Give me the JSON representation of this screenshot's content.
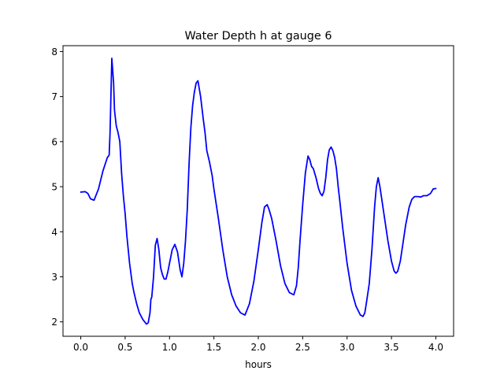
{
  "chart_data": {
    "type": "line",
    "title": "Water Depth h at gauge 6",
    "xlabel": "hours",
    "ylabel": "",
    "xlim": [
      -0.2,
      4.2
    ],
    "ylim": [
      1.68,
      8.13
    ],
    "xticks": [
      0.0,
      0.5,
      1.0,
      1.5,
      2.0,
      2.5,
      3.0,
      3.5,
      4.0
    ],
    "xtick_labels": [
      "0.0",
      "0.5",
      "1.0",
      "1.5",
      "2.0",
      "2.5",
      "3.0",
      "3.5",
      "4.0"
    ],
    "yticks": [
      2,
      3,
      4,
      5,
      6,
      7,
      8
    ],
    "ytick_labels": [
      "2",
      "3",
      "4",
      "5",
      "6",
      "7",
      "8"
    ],
    "grid": false,
    "series": [
      {
        "color": "#0000ff",
        "x": [
          0.0,
          0.05,
          0.08,
          0.11,
          0.15,
          0.2,
          0.25,
          0.3,
          0.32,
          0.33,
          0.35,
          0.37,
          0.38,
          0.4,
          0.42,
          0.44,
          0.46,
          0.48,
          0.5,
          0.52,
          0.55,
          0.58,
          0.6,
          0.63,
          0.66,
          0.7,
          0.74,
          0.76,
          0.78,
          0.79,
          0.8,
          0.82,
          0.84,
          0.86,
          0.88,
          0.9,
          0.92,
          0.94,
          0.96,
          0.98,
          1.0,
          1.03,
          1.06,
          1.09,
          1.12,
          1.14,
          1.16,
          1.18,
          1.2,
          1.22,
          1.24,
          1.26,
          1.28,
          1.3,
          1.32,
          1.35,
          1.38,
          1.4,
          1.42,
          1.45,
          1.48,
          1.5,
          1.55,
          1.6,
          1.65,
          1.7,
          1.75,
          1.8,
          1.85,
          1.9,
          1.95,
          2.0,
          2.04,
          2.07,
          2.1,
          2.12,
          2.15,
          2.2,
          2.25,
          2.3,
          2.35,
          2.4,
          2.43,
          2.45,
          2.47,
          2.5,
          2.53,
          2.56,
          2.58,
          2.6,
          2.62,
          2.65,
          2.68,
          2.7,
          2.72,
          2.74,
          2.76,
          2.78,
          2.8,
          2.82,
          2.84,
          2.86,
          2.88,
          2.9,
          2.92,
          2.95,
          3.0,
          3.05,
          3.1,
          3.15,
          3.18,
          3.2,
          3.22,
          3.25,
          3.28,
          3.31,
          3.33,
          3.35,
          3.37,
          3.4,
          3.43,
          3.46,
          3.5,
          3.53,
          3.55,
          3.57,
          3.6,
          3.63,
          3.66,
          3.7,
          3.73,
          3.76,
          3.8,
          3.83,
          3.86,
          3.9,
          3.94,
          3.97,
          4.0
        ],
        "y": [
          4.88,
          4.89,
          4.85,
          4.73,
          4.7,
          4.95,
          5.35,
          5.65,
          5.7,
          6.2,
          7.85,
          7.3,
          6.7,
          6.35,
          6.2,
          6.0,
          5.3,
          4.8,
          4.4,
          3.9,
          3.3,
          2.85,
          2.65,
          2.4,
          2.2,
          2.05,
          1.95,
          1.98,
          2.2,
          2.5,
          2.55,
          3.0,
          3.7,
          3.85,
          3.6,
          3.2,
          3.05,
          2.95,
          2.95,
          3.1,
          3.3,
          3.6,
          3.72,
          3.55,
          3.15,
          3.0,
          3.3,
          3.8,
          4.5,
          5.5,
          6.3,
          6.8,
          7.1,
          7.3,
          7.35,
          7.0,
          6.5,
          6.2,
          5.8,
          5.55,
          5.25,
          4.95,
          4.3,
          3.6,
          3.0,
          2.6,
          2.35,
          2.2,
          2.15,
          2.4,
          2.9,
          3.6,
          4.2,
          4.55,
          4.6,
          4.5,
          4.3,
          3.8,
          3.25,
          2.85,
          2.65,
          2.6,
          2.8,
          3.2,
          3.8,
          4.6,
          5.3,
          5.68,
          5.6,
          5.45,
          5.4,
          5.2,
          4.95,
          4.85,
          4.8,
          4.9,
          5.2,
          5.6,
          5.82,
          5.88,
          5.8,
          5.65,
          5.4,
          5.0,
          4.65,
          4.1,
          3.3,
          2.7,
          2.35,
          2.15,
          2.12,
          2.2,
          2.45,
          2.85,
          3.6,
          4.55,
          5.0,
          5.2,
          5.0,
          4.6,
          4.2,
          3.8,
          3.35,
          3.13,
          3.08,
          3.12,
          3.35,
          3.75,
          4.15,
          4.55,
          4.72,
          4.78,
          4.78,
          4.77,
          4.8,
          4.8,
          4.85,
          4.95,
          4.96
        ]
      }
    ]
  }
}
